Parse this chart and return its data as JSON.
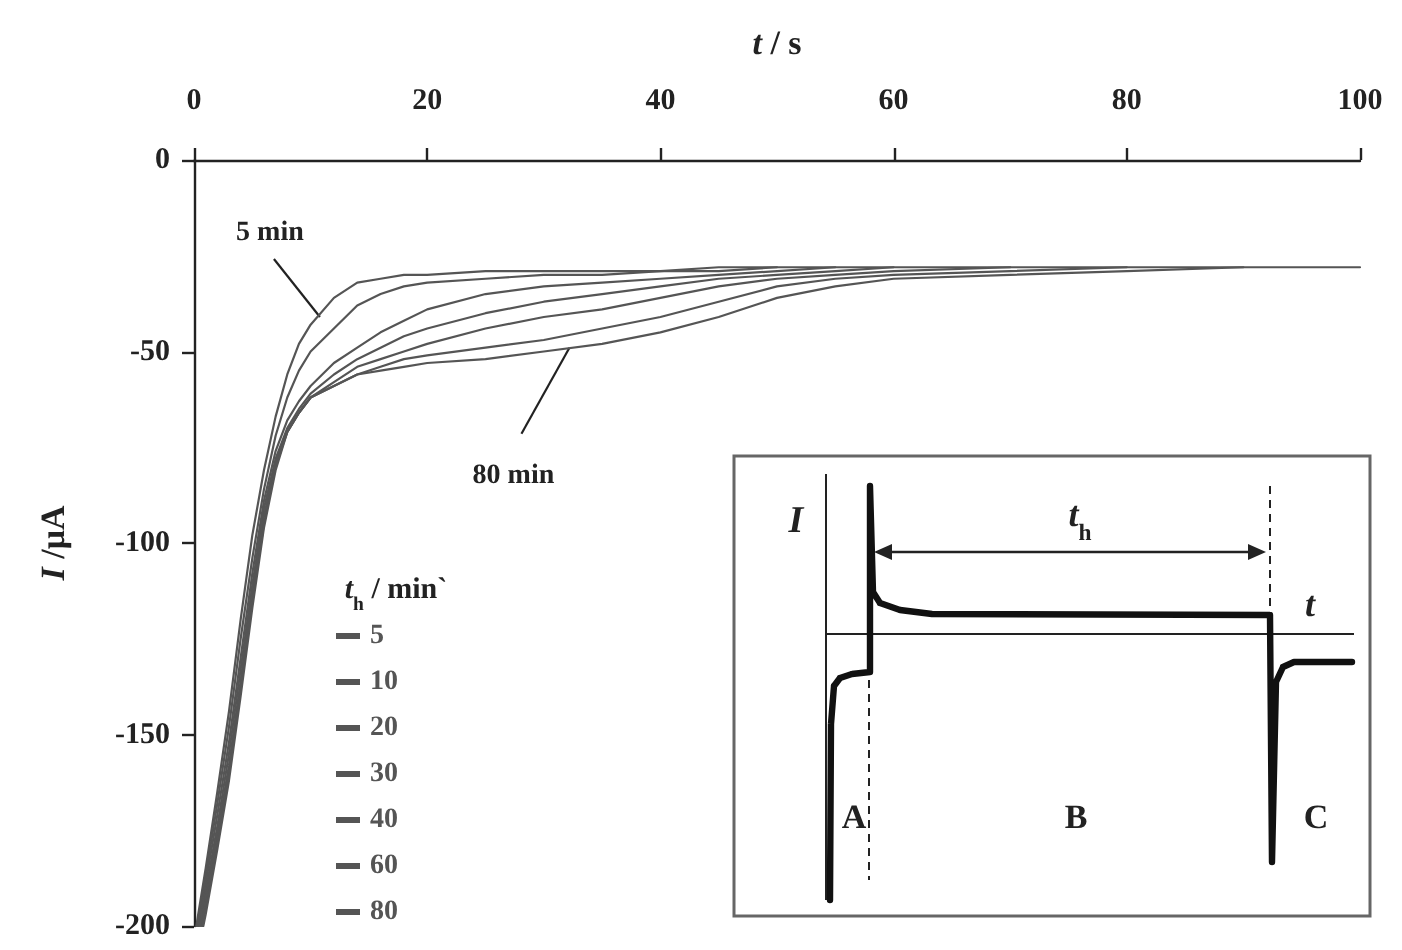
{
  "chart_data": {
    "type": "line",
    "xlabel": "t / s",
    "ylabel": "I /μA",
    "legend_title": "t$_{h}$ / min`",
    "legend": "bottom left",
    "line_style": "solid",
    "xlim": [
      0,
      100
    ],
    "xticks": [
      0,
      20,
      40,
      60,
      80,
      100
    ],
    "ylim": [
      -200,
      0
    ],
    "yticks": [
      -200,
      -150,
      -100,
      -50,
      0
    ],
    "series": [
      {
        "name": "5",
        "color": "#555555",
        "x": [
          0.2,
          1,
          2,
          3,
          4,
          5,
          6,
          7,
          8,
          9,
          10,
          12,
          14,
          16,
          18,
          20,
          25,
          30,
          35,
          40,
          45,
          50
        ],
        "values": [
          -200,
          -185,
          -165,
          -144,
          -120,
          -98,
          -81,
          -67,
          -56,
          -48,
          -43,
          -36,
          -32,
          -31,
          -30,
          -30,
          -29,
          -29,
          -29,
          -29,
          -28,
          -28
        ]
      },
      {
        "name": "10",
        "color": "#555555",
        "x": [
          0.3,
          1,
          2,
          3,
          4,
          5,
          6,
          7,
          8,
          9,
          10,
          12,
          14,
          16,
          18,
          20,
          25,
          30,
          35,
          40,
          45,
          50,
          55
        ],
        "values": [
          -200,
          -187,
          -168,
          -148,
          -125,
          -104,
          -86,
          -72,
          -62,
          -55,
          -50,
          -44,
          -38,
          -35,
          -33,
          -32,
          -31,
          -30,
          -30,
          -29,
          -29,
          -28,
          -28
        ]
      },
      {
        "name": "20",
        "color": "#555555",
        "x": [
          0.4,
          1,
          2,
          3,
          4,
          5,
          6,
          7,
          8,
          9,
          10,
          12,
          14,
          16,
          18,
          20,
          25,
          30,
          35,
          40,
          45,
          50,
          55,
          60
        ],
        "values": [
          -200,
          -189,
          -171,
          -152,
          -130,
          -108,
          -89,
          -76,
          -68,
          -63,
          -59,
          -53,
          -49,
          -45,
          -42,
          -39,
          -35,
          -33,
          -32,
          -31,
          -30,
          -29,
          -28,
          -28
        ]
      },
      {
        "name": "30",
        "color": "#555555",
        "x": [
          0.5,
          1,
          2,
          3,
          4,
          5,
          6,
          7,
          8,
          9,
          10,
          12,
          14,
          16,
          18,
          20,
          25,
          30,
          35,
          40,
          45,
          50,
          55,
          60,
          70
        ],
        "values": [
          -200,
          -191,
          -174,
          -155,
          -133,
          -111,
          -91,
          -78,
          -70,
          -65,
          -61,
          -56,
          -52,
          -49,
          -46,
          -44,
          -40,
          -37,
          -35,
          -33,
          -31,
          -30,
          -29,
          -28,
          -28
        ]
      },
      {
        "name": "40",
        "color": "#555555",
        "x": [
          0.6,
          1,
          2,
          3,
          4,
          5,
          6,
          7,
          8,
          9,
          10,
          12,
          14,
          16,
          18,
          20,
          25,
          30,
          35,
          40,
          45,
          50,
          55,
          60,
          70,
          80
        ],
        "values": [
          -200,
          -193,
          -176,
          -158,
          -136,
          -113,
          -93,
          -79,
          -71,
          -66,
          -62,
          -58,
          -54,
          -52,
          -50,
          -48,
          -44,
          -41,
          -39,
          -36,
          -33,
          -31,
          -30,
          -29,
          -28,
          -28
        ]
      },
      {
        "name": "60",
        "color": "#555555",
        "x": [
          0.7,
          1,
          2,
          3,
          4,
          5,
          6,
          7,
          8,
          9,
          10,
          12,
          14,
          16,
          18,
          20,
          25,
          30,
          35,
          40,
          45,
          50,
          55,
          60,
          70,
          80,
          90
        ],
        "values": [
          -200,
          -195,
          -178,
          -160,
          -138,
          -115,
          -95,
          -80,
          -71,
          -66,
          -62,
          -59,
          -56,
          -54,
          -52,
          -51,
          -49,
          -47,
          -44,
          -41,
          -37,
          -33,
          -31,
          -30,
          -29,
          -28,
          -28
        ]
      },
      {
        "name": "80",
        "color": "#555555",
        "x": [
          0.8,
          1,
          2,
          3,
          4,
          5,
          6,
          7,
          8,
          9,
          10,
          12,
          14,
          16,
          18,
          20,
          25,
          30,
          35,
          40,
          45,
          50,
          55,
          60,
          70,
          80,
          90,
          100
        ],
        "values": [
          -200,
          -197,
          -180,
          -162,
          -140,
          -117,
          -96,
          -81,
          -71,
          -66,
          -62,
          -59,
          -56,
          -55,
          -54,
          -53,
          -52,
          -50,
          -48,
          -45,
          -41,
          -36,
          -33,
          -31,
          -30,
          -29,
          -28,
          -28
        ]
      }
    ],
    "annotations": [
      {
        "text": "5 min",
        "x": 10.8,
        "y": -41
      },
      {
        "text": "80 min",
        "x": 32.2,
        "y": -49
      },
      "I",
      "t$_{h}$",
      "t",
      "A",
      "B",
      "C"
    ]
  }
}
